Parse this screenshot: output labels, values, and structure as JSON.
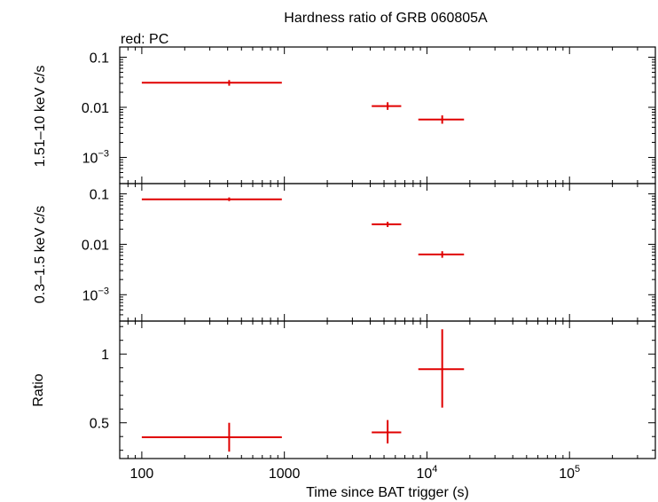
{
  "title": "Hardness ratio of GRB 060805A",
  "legend_text": "red: PC",
  "xlabel": "Time since BAT trigger (s)",
  "colors": {
    "series": "#e00000",
    "axes": "#000000",
    "background": "#ffffff"
  },
  "chart_data": [
    {
      "type": "scatter",
      "panel": "top",
      "ylabel": "1.51–10 keV c/s",
      "yscale": "log",
      "ylim": [
        0.0003,
        0.16
      ],
      "xscale": "log",
      "xlim": [
        70,
        400000
      ],
      "y_ticks": [
        {
          "value": 0.001,
          "label": "10",
          "sup": "−3"
        },
        {
          "value": 0.01,
          "label": "0.01",
          "sup": ""
        },
        {
          "value": 0.1,
          "label": "0.1",
          "sup": ""
        }
      ],
      "series": [
        {
          "name": "PC",
          "color": "#e00000",
          "points": [
            {
              "x": 410,
              "xlo": 100,
              "xhi": 960,
              "y": 0.031,
              "ylo": 0.027,
              "yhi": 0.035
            },
            {
              "x": 5300,
              "xlo": 4100,
              "xhi": 6600,
              "y": 0.0106,
              "ylo": 0.0089,
              "yhi": 0.0126
            },
            {
              "x": 12800,
              "xlo": 8700,
              "xhi": 18200,
              "y": 0.0057,
              "ylo": 0.0047,
              "yhi": 0.0069
            }
          ]
        }
      ]
    },
    {
      "type": "scatter",
      "panel": "middle",
      "ylabel": "0.3–1.5 keV c/s",
      "yscale": "log",
      "ylim": [
        0.0003,
        0.16
      ],
      "xscale": "log",
      "xlim": [
        70,
        400000
      ],
      "y_ticks": [
        {
          "value": 0.001,
          "label": "10",
          "sup": "−3"
        },
        {
          "value": 0.01,
          "label": "0.01",
          "sup": ""
        },
        {
          "value": 0.1,
          "label": "0.1",
          "sup": ""
        }
      ],
      "series": [
        {
          "name": "PC",
          "color": "#e00000",
          "points": [
            {
              "x": 410,
              "xlo": 100,
              "xhi": 960,
              "y": 0.078,
              "ylo": 0.072,
              "yhi": 0.085
            },
            {
              "x": 5300,
              "xlo": 4100,
              "xhi": 6600,
              "y": 0.025,
              "ylo": 0.022,
              "yhi": 0.028
            },
            {
              "x": 12800,
              "xlo": 8700,
              "xhi": 18200,
              "y": 0.0063,
              "ylo": 0.0054,
              "yhi": 0.0073
            }
          ]
        }
      ]
    },
    {
      "type": "scatter",
      "panel": "bottom",
      "ylabel": "Ratio",
      "yscale": "linear",
      "ylim": [
        0.24,
        1.24
      ],
      "xscale": "log",
      "xlim": [
        70,
        400000
      ],
      "y_ticks": [
        {
          "value": 0.5,
          "label": "0.5",
          "sup": ""
        },
        {
          "value": 1,
          "label": "1",
          "sup": ""
        }
      ],
      "x_ticks": [
        {
          "value": 100,
          "label": "100",
          "sup": ""
        },
        {
          "value": 1000,
          "label": "1000",
          "sup": ""
        },
        {
          "value": 10000,
          "label": "10",
          "sup": "4"
        },
        {
          "value": 100000,
          "label": "10",
          "sup": "5"
        }
      ],
      "series": [
        {
          "name": "PC",
          "color": "#e00000",
          "points": [
            {
              "x": 410,
              "xlo": 100,
              "xhi": 960,
              "y": 0.395,
              "ylo": 0.29,
              "yhi": 0.5
            },
            {
              "x": 5300,
              "xlo": 4100,
              "xhi": 6600,
              "y": 0.43,
              "ylo": 0.35,
              "yhi": 0.52
            },
            {
              "x": 12800,
              "xlo": 8700,
              "xhi": 18200,
              "y": 0.89,
              "ylo": 0.61,
              "yhi": 1.18
            }
          ]
        }
      ]
    }
  ]
}
